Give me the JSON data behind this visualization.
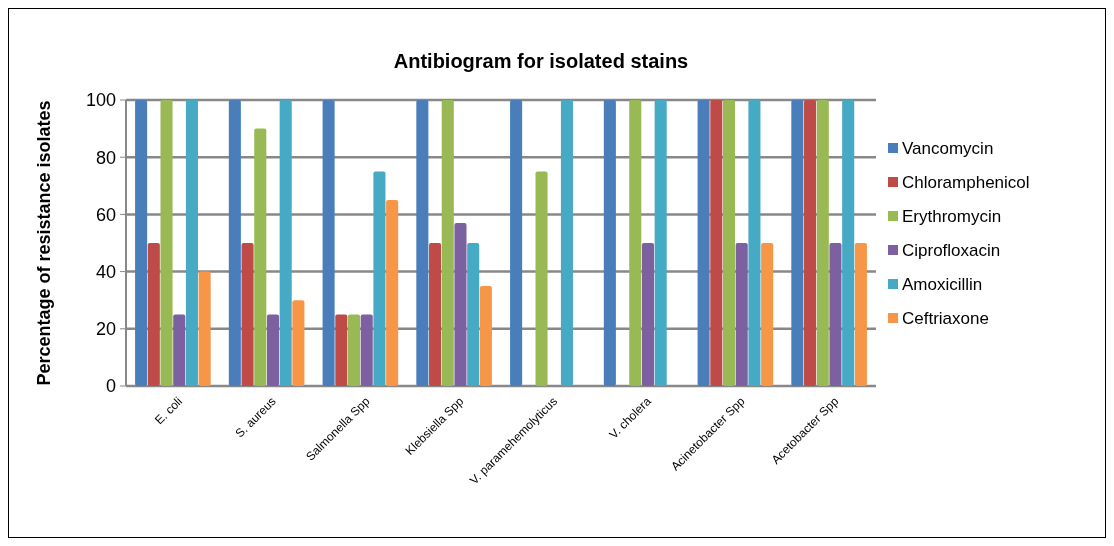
{
  "chart_data": {
    "type": "bar",
    "title": "Antibiogram for  isolated stains",
    "ylabel": "Percentage of resistance isolates",
    "categories": [
      "E. coli",
      "S. aureus",
      "Salmonella Spp",
      "Klebsiella Spp",
      "V. paramehemolyticus",
      "V. cholera",
      "Acinetobacter Spp",
      "Acetobacter Spp"
    ],
    "series": [
      {
        "name": "Vancomycin",
        "color": "#4a7ebb",
        "values": [
          100,
          100,
          100,
          100,
          100,
          100,
          100,
          100
        ]
      },
      {
        "name": "Chloramphenicol",
        "color": "#be4b48",
        "values": [
          50,
          50,
          25,
          50,
          0,
          0,
          100,
          100
        ]
      },
      {
        "name": "Erythromycin",
        "color": "#98b954",
        "values": [
          100,
          90,
          25,
          100,
          75,
          100,
          100,
          100
        ]
      },
      {
        "name": "Ciprofloxacin",
        "color": "#7d60a0",
        "values": [
          25,
          25,
          25,
          57,
          0,
          50,
          50,
          50
        ]
      },
      {
        "name": "Amoxicillin",
        "color": "#46aac5",
        "values": [
          100,
          100,
          75,
          50,
          100,
          100,
          100,
          100
        ]
      },
      {
        "name": "Ceftriaxone",
        "color": "#f79646",
        "values": [
          40,
          30,
          65,
          35,
          0,
          0,
          50,
          50
        ]
      }
    ],
    "ylim": [
      0,
      100
    ],
    "yticks": [
      0,
      20,
      40,
      60,
      80,
      100
    ],
    "grid": "y",
    "legend": "right"
  }
}
